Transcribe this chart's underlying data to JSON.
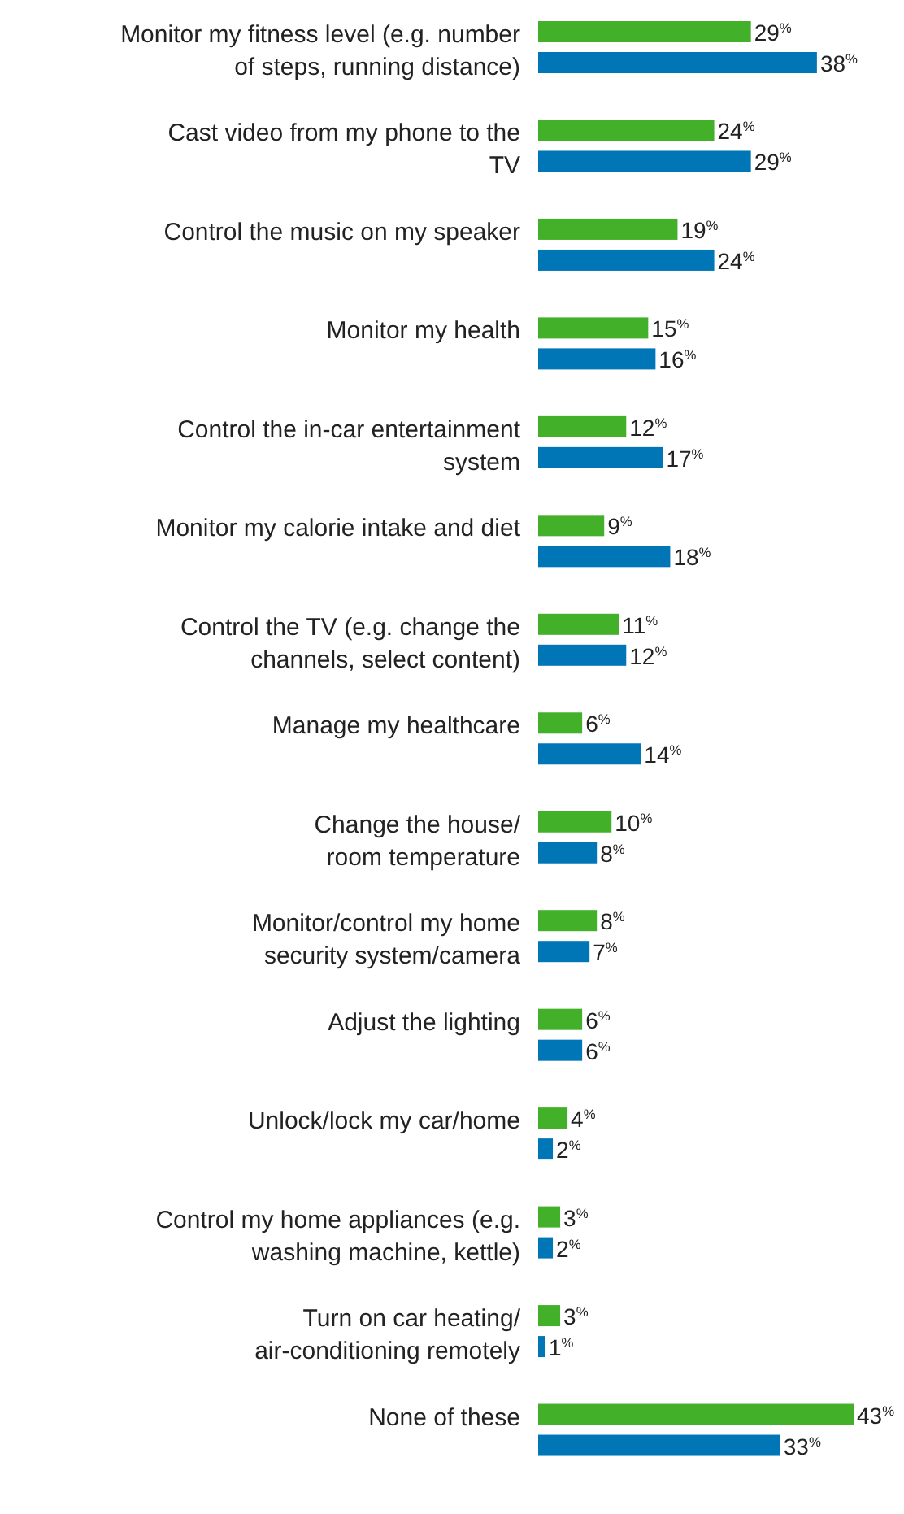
{
  "chart_data": {
    "type": "bar",
    "orientation": "horizontal",
    "data_labels": false,
    "categories": [
      "Monitor my fitness level (e.g. number\nof steps, running distance)",
      "Cast video from my phone to the\nTV",
      "Control the music on my speaker",
      "Monitor my health",
      "Control the in-car entertainment\nsystem",
      "Monitor my calorie intake and diet",
      "Control the TV (e.g. change the\nchannels, select content)",
      "Manage my healthcare",
      "Change the house/\nroom temperature",
      "Monitor/control my home\nsecurity system/camera",
      "Adjust the lighting",
      "Unlock/lock my car/home",
      "Control my home appliances (e.g.\nwashing machine, kettle)",
      "Turn on car heating/\nair-conditioning remotely",
      "None of these"
    ],
    "series": [
      {
        "color": "#43b02a",
        "values": [
          29,
          24,
          19,
          15,
          12,
          9,
          11,
          6,
          10,
          8,
          6,
          4,
          3,
          3,
          43
        ],
        "value_labels": [
          "29$^{%}$",
          "24$^{%}$",
          "19$^{%}$",
          "15$^{%}$",
          "12$^{%}$",
          "9$^{%}$",
          "11$^{%}$",
          "6$^{%}$",
          "10$^{%}$",
          "8$^{%}$",
          "6$^{%}$",
          "4$^{%}$",
          "3$^{%}$",
          "3$^{%}$",
          "43$^{%}$"
        ]
      },
      {
        "color": "#0076b6",
        "values": [
          38,
          29,
          24,
          16,
          17,
          18,
          12,
          14,
          8,
          7,
          6,
          2,
          2,
          1,
          33
        ],
        "value_labels": [
          "38$^{%}$",
          "29$^{%}$",
          "24$^{%}$",
          "16$^{%}$",
          "17$^{%}$",
          "18$^{%}$",
          "12$^{%}$",
          "14$^{%}$",
          "8$^{%}$",
          "7$^{%}$",
          "6$^{%}$",
          "2$^{%}$",
          "2$^{%}$",
          "1$^{%}$",
          "33$^{%}$"
        ]
      }
    ]
  }
}
